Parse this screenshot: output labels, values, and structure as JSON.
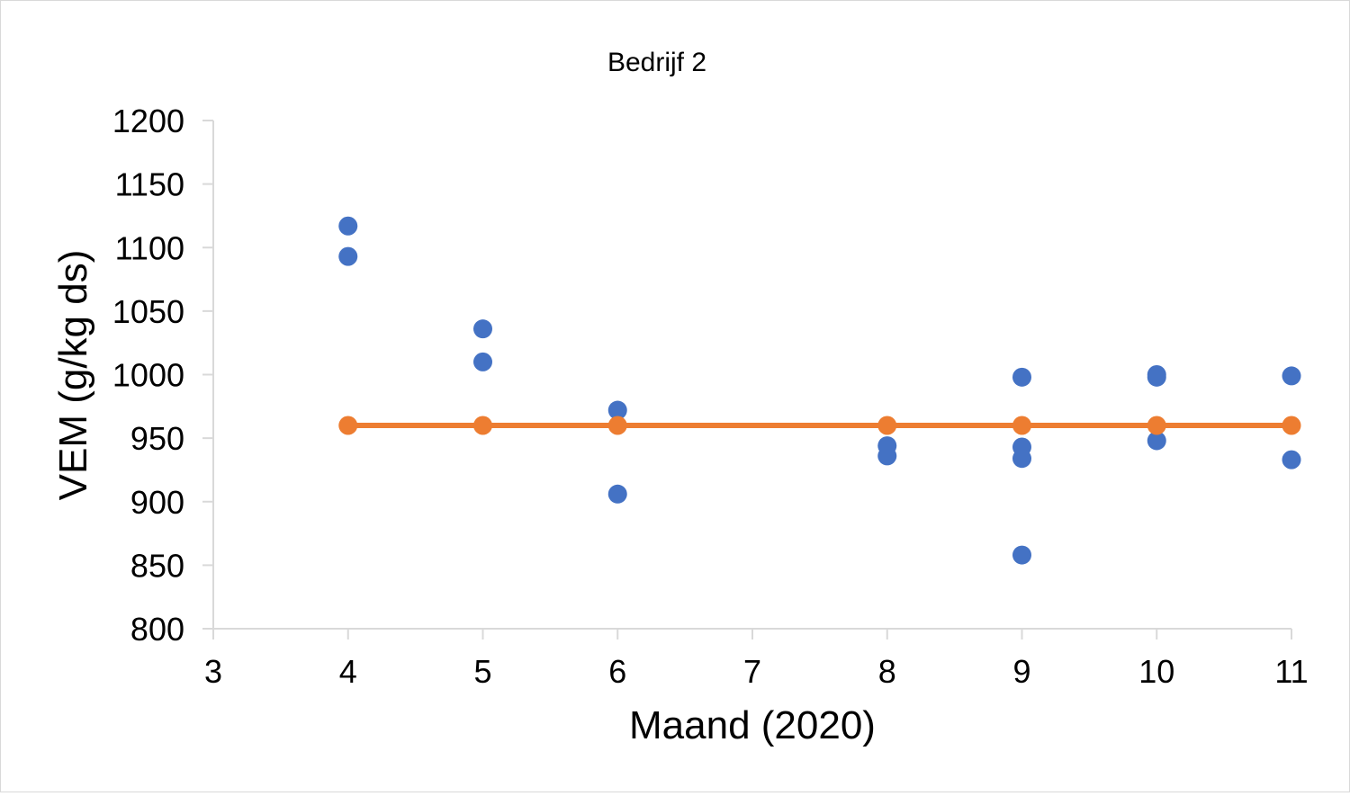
{
  "chart_data": {
    "type": "scatter",
    "title": "Bedrijf 2",
    "xlabel": "Maand (2020)",
    "ylabel": "VEM (g/kg ds)",
    "xlim": [
      3,
      11
    ],
    "ylim": [
      800,
      1200
    ],
    "xticks": [
      3,
      4,
      5,
      6,
      7,
      8,
      9,
      10,
      11
    ],
    "yticks": [
      800,
      850,
      900,
      950,
      1000,
      1050,
      1100,
      1150,
      1200
    ],
    "grid": false,
    "legend": "none",
    "series": [
      {
        "kind": "scatter",
        "color": "#4472C4",
        "points": [
          [
            4,
            1117
          ],
          [
            4,
            1093
          ],
          [
            5,
            1036
          ],
          [
            5,
            1010
          ],
          [
            6,
            972
          ],
          [
            6,
            906
          ],
          [
            8,
            944
          ],
          [
            8,
            936
          ],
          [
            9,
            998
          ],
          [
            9,
            943
          ],
          [
            9,
            934
          ],
          [
            9,
            858
          ],
          [
            10,
            1000
          ],
          [
            10,
            998
          ],
          [
            10,
            948
          ],
          [
            11,
            999
          ],
          [
            11,
            933
          ]
        ]
      },
      {
        "kind": "line",
        "color": "#ED7D31",
        "points": [
          [
            4,
            960
          ],
          [
            5,
            960
          ],
          [
            6,
            960
          ],
          [
            8,
            960
          ],
          [
            9,
            960
          ],
          [
            10,
            960
          ],
          [
            11,
            960
          ]
        ]
      }
    ]
  }
}
